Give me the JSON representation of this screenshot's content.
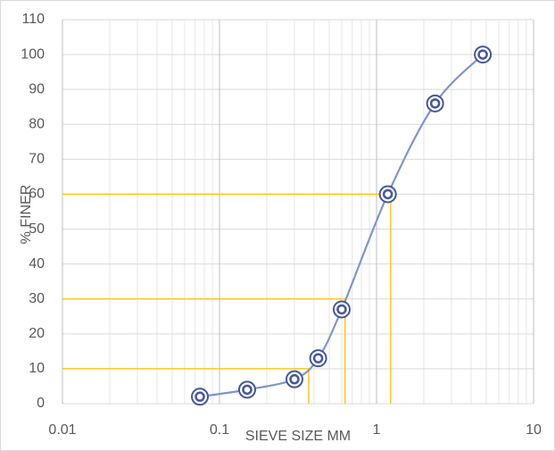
{
  "chart_data": {
    "type": "line",
    "x_label": "SIEVE SIZE MM",
    "y_label": "% FINER",
    "x_scale": "log",
    "xlim": [
      0.01,
      10
    ],
    "xticks": [
      0.01,
      0.1,
      1,
      10
    ],
    "ylim": [
      0,
      110
    ],
    "yticks": [
      0,
      10,
      20,
      30,
      40,
      50,
      60,
      70,
      80,
      90,
      100,
      110
    ],
    "grid": true,
    "series": [
      {
        "color": "#7c96cc",
        "marker_color": "#44579c",
        "x": [
          0.075,
          0.15,
          0.3,
          0.425,
          0.6,
          1.18,
          2.36,
          4.75
        ],
        "values": [
          2,
          4,
          7,
          13,
          27,
          60,
          86,
          100
        ]
      }
    ],
    "reference_lines": [
      {
        "x": 0.37,
        "y": 10
      },
      {
        "x": 0.63,
        "y": 30
      },
      {
        "x": 1.23,
        "y": 60
      }
    ],
    "reference_color": "#ffc000"
  }
}
